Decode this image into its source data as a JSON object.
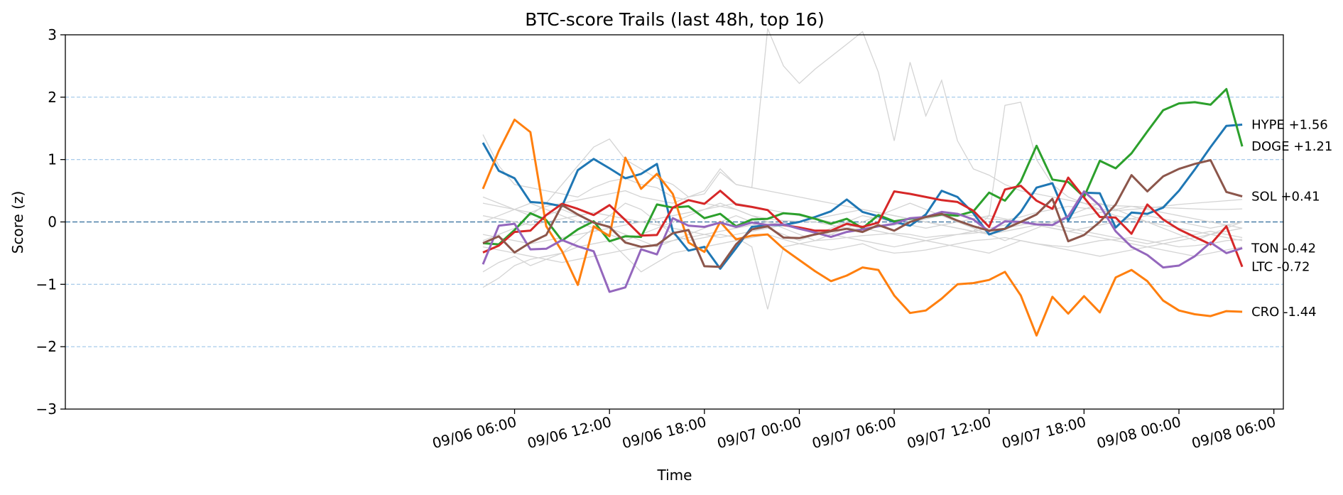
{
  "chart_data": {
    "type": "line",
    "title": "BTC-score Trails (last 48h, top 16)",
    "xlabel": "Time",
    "ylabel": "Score (z)",
    "ylim": [
      -3,
      3
    ],
    "yticks": [
      -3,
      -2,
      -1,
      0,
      1,
      2,
      3
    ],
    "ytick_labels": [
      "−3",
      "−2",
      "−1",
      "0",
      "1",
      "2",
      "3"
    ],
    "xlim": [
      "2025-09-05T01:36",
      "2025-09-08T06:36"
    ],
    "xticks": [
      "09/06 06:00",
      "09/06 12:00",
      "09/06 18:00",
      "09/07 00:00",
      "09/07 06:00",
      "09/07 12:00",
      "09/07 18:00",
      "09/08 00:00",
      "09/08 06:00"
    ],
    "reference_lines": {
      "solid_dashed": [
        0
      ],
      "dotted": [
        -2,
        -1,
        1,
        2
      ]
    },
    "x": [
      "09/06 04:00",
      "09/06 05:00",
      "09/06 06:00",
      "09/06 07:00",
      "09/06 08:00",
      "09/06 09:00",
      "09/06 10:00",
      "09/06 11:00",
      "09/06 12:00",
      "09/06 13:00",
      "09/06 14:00",
      "09/06 15:00",
      "09/06 16:00",
      "09/06 17:00",
      "09/06 18:00",
      "09/06 19:00",
      "09/06 20:00",
      "09/06 21:00",
      "09/06 22:00",
      "09/06 23:00",
      "09/07 00:00",
      "09/07 01:00",
      "09/07 02:00",
      "09/07 03:00",
      "09/07 04:00",
      "09/07 05:00",
      "09/07 06:00",
      "09/07 07:00",
      "09/07 08:00",
      "09/07 09:00",
      "09/07 10:00",
      "09/07 11:00",
      "09/07 12:00",
      "09/07 13:00",
      "09/07 14:00",
      "09/07 15:00",
      "09/07 16:00",
      "09/07 17:00",
      "09/07 18:00",
      "09/07 19:00",
      "09/07 20:00",
      "09/07 21:00",
      "09/07 22:00",
      "09/07 23:00",
      "09/08 00:00",
      "09/08 01:00",
      "09/08 02:00",
      "09/08 03:00",
      "09/08 04:00"
    ],
    "series": [
      {
        "name": "HYPE",
        "label": "HYPE  +1.56",
        "color": "#1f77b4",
        "values": [
          1.27,
          0.82,
          0.7,
          0.32,
          0.3,
          0.25,
          0.83,
          1.01,
          0.86,
          0.7,
          0.77,
          0.93,
          -0.15,
          -0.46,
          -0.4,
          -0.75,
          -0.42,
          -0.08,
          -0.05,
          -0.05,
          0.0,
          0.08,
          0.17,
          0.36,
          0.16,
          0.09,
          0.0,
          -0.06,
          0.12,
          0.5,
          0.4,
          0.14,
          -0.2,
          -0.11,
          0.16,
          0.55,
          0.62,
          0.02,
          0.47,
          0.46,
          -0.09,
          0.15,
          0.13,
          0.23,
          0.5,
          0.84,
          1.2,
          1.54,
          1.56
        ]
      },
      {
        "name": "DOGE",
        "label": "DOGE  +1.21",
        "color": "#2ca02c",
        "values": [
          -0.34,
          -0.36,
          -0.13,
          0.14,
          0.03,
          -0.3,
          -0.12,
          0.01,
          -0.31,
          -0.23,
          -0.24,
          0.28,
          0.23,
          0.25,
          0.06,
          0.13,
          -0.07,
          0.04,
          0.05,
          0.14,
          0.12,
          0.05,
          -0.03,
          0.05,
          -0.1,
          0.11,
          0.01,
          0.05,
          0.08,
          0.12,
          0.1,
          0.17,
          0.47,
          0.34,
          0.65,
          1.22,
          0.68,
          0.64,
          0.4,
          0.98,
          0.86,
          1.1,
          1.45,
          1.79,
          1.9,
          1.92,
          1.88,
          2.13,
          1.21
        ]
      },
      {
        "name": "CRO",
        "label": "CRO  -1.44",
        "color": "#ff7f0e",
        "values": [
          0.53,
          1.14,
          1.64,
          1.44,
          -0.07,
          -0.47,
          -1.01,
          -0.07,
          -0.23,
          1.03,
          0.53,
          0.77,
          0.45,
          -0.33,
          -0.48,
          0.0,
          -0.28,
          -0.22,
          -0.2,
          -0.43,
          -0.61,
          -0.79,
          -0.95,
          -0.86,
          -0.73,
          -0.77,
          -1.18,
          -1.46,
          -1.42,
          -1.23,
          -1.0,
          -0.98,
          -0.93,
          -0.8,
          -1.18,
          -1.82,
          -1.2,
          -1.47,
          -1.19,
          -1.45,
          -0.89,
          -0.77,
          -0.95,
          -1.26,
          -1.42,
          -1.48,
          -1.51,
          -1.43,
          -1.44
        ]
      },
      {
        "name": "LTC",
        "label": "LTC  -0.72",
        "color": "#d62728",
        "values": [
          -0.49,
          -0.38,
          -0.16,
          -0.14,
          0.11,
          0.29,
          0.21,
          0.11,
          0.27,
          0.03,
          -0.22,
          -0.21,
          0.23,
          0.35,
          0.29,
          0.5,
          0.28,
          0.24,
          0.19,
          -0.05,
          -0.09,
          -0.14,
          -0.14,
          -0.03,
          -0.08,
          -0.01,
          0.49,
          0.45,
          0.4,
          0.35,
          0.32,
          0.18,
          -0.08,
          0.52,
          0.58,
          0.34,
          0.21,
          0.71,
          0.39,
          0.08,
          0.07,
          -0.19,
          0.28,
          0.04,
          -0.12,
          -0.24,
          -0.36,
          -0.07,
          -0.72
        ]
      },
      {
        "name": "TON",
        "label": "TON  -0.42",
        "color": "#9467bd",
        "values": [
          -0.68,
          -0.06,
          -0.03,
          -0.44,
          -0.43,
          -0.29,
          -0.39,
          -0.47,
          -1.12,
          -1.05,
          -0.44,
          -0.52,
          0.06,
          -0.06,
          -0.08,
          -0.01,
          -0.08,
          -0.01,
          -0.05,
          -0.04,
          -0.11,
          -0.17,
          -0.24,
          -0.16,
          -0.12,
          -0.07,
          -0.03,
          0.06,
          0.08,
          0.16,
          0.13,
          0.04,
          -0.15,
          0.01,
          0.0,
          -0.04,
          -0.05,
          0.09,
          0.49,
          0.26,
          -0.15,
          -0.4,
          -0.53,
          -0.73,
          -0.7,
          -0.55,
          -0.33,
          -0.5,
          -0.42
        ]
      },
      {
        "name": "SOL",
        "label": "SOL  +0.41",
        "color": "#8c564b",
        "values": [
          -0.34,
          -0.23,
          -0.49,
          -0.33,
          -0.21,
          0.27,
          0.12,
          -0.01,
          -0.08,
          -0.33,
          -0.4,
          -0.37,
          -0.18,
          -0.13,
          -0.71,
          -0.72,
          -0.36,
          -0.12,
          -0.07,
          -0.25,
          -0.26,
          -0.2,
          -0.15,
          -0.11,
          -0.16,
          -0.05,
          -0.14,
          0.0,
          0.08,
          0.13,
          0.02,
          -0.07,
          -0.14,
          -0.11,
          0.0,
          0.12,
          0.37,
          -0.31,
          -0.21,
          0.0,
          0.28,
          0.75,
          0.49,
          0.73,
          0.85,
          0.93,
          0.99,
          0.48,
          0.41
        ]
      }
    ],
    "background_series": [
      {
        "values": [
          1.4,
          0.9,
          0.6,
          0.55,
          0.5,
          0.45,
          0.4,
          0.55,
          0.65,
          0.7,
          0.6,
          0.55,
          0.4,
          0.35,
          0.3,
          0.25,
          0.2,
          0.1,
          0.05,
          0.02,
          0.01,
          0.0,
          -0.05,
          -0.1,
          -0.12,
          -0.08,
          -0.05,
          0.0,
          0.05,
          0.1,
          0.12,
          0.1,
          0.05,
          0.03,
          0.08,
          0.15,
          0.2,
          0.25,
          0.22,
          0.2,
          0.18,
          0.2,
          0.22,
          0.25,
          0.28,
          0.3,
          0.32,
          0.34,
          0.36
        ]
      },
      {
        "values": [
          -0.8,
          -0.65,
          -0.55,
          -0.7,
          -0.6,
          -0.5,
          -0.3,
          -0.1,
          0.1,
          0.3,
          0.2,
          0.0,
          -0.2,
          -0.3,
          -0.25,
          -0.2,
          -0.25,
          -0.4,
          -1.4,
          -0.4,
          -0.35,
          -0.3,
          -0.28,
          -0.25,
          -0.22,
          -0.2,
          -0.18,
          -0.2,
          -0.25,
          -0.22,
          -0.2,
          -0.18,
          -0.15,
          -0.1,
          -0.05,
          0.0,
          -0.05,
          -0.1,
          -0.15,
          -0.2,
          -0.25,
          -0.3,
          -0.35,
          -0.3,
          -0.25,
          -0.2,
          -0.15,
          -0.2,
          -0.25
        ]
      },
      {
        "values": [
          0.3,
          0.25,
          0.2,
          0.15,
          0.25,
          0.3,
          0.35,
          0.4,
          0.45,
          0.5,
          0.4,
          0.35,
          0.3,
          0.4,
          0.45,
          0.8,
          0.6,
          0.55,
          3.1,
          2.5,
          2.22,
          2.45,
          2.65,
          2.85,
          3.05,
          2.4,
          1.3,
          2.56,
          1.7,
          2.27,
          1.3,
          0.85,
          0.75,
          0.6,
          0.5,
          0.45,
          0.4,
          0.35,
          0.3,
          0.28,
          0.26,
          0.25,
          0.24,
          0.23,
          0.22,
          0.21,
          0.2,
          0.2,
          0.21
        ]
      },
      {
        "values": [
          -1.05,
          -0.9,
          -0.7,
          -0.6,
          -0.55,
          -0.5,
          -0.4,
          -0.35,
          -0.3,
          -0.55,
          -0.8,
          -0.65,
          -0.5,
          -0.45,
          -0.4,
          -0.35,
          -0.3,
          -0.25,
          -0.2,
          -0.28,
          -0.35,
          -0.4,
          -0.45,
          -0.4,
          -0.35,
          -0.45,
          -0.5,
          -0.48,
          -0.45,
          -0.4,
          -0.35,
          -0.3,
          -0.28,
          -0.25,
          -0.3,
          -0.35,
          -0.38,
          -0.4,
          -0.35,
          -0.3,
          -0.28,
          -0.25,
          -0.3,
          -0.35,
          -0.4,
          -0.38,
          -0.35,
          -0.3,
          -0.28
        ]
      },
      {
        "values": [
          0.4,
          0.3,
          0.2,
          0.1,
          0.3,
          0.6,
          0.9,
          1.2,
          1.33,
          1.0,
          0.85,
          0.7,
          0.6,
          0.4,
          0.5,
          0.85,
          0.6,
          0.55,
          0.5,
          0.45,
          0.4,
          0.35,
          0.3,
          0.25,
          0.2,
          0.15,
          0.1,
          0.05,
          0.0,
          -0.05,
          -0.1,
          -0.15,
          0.1,
          1.87,
          1.92,
          1.0,
          0.6,
          0.4,
          0.3,
          0.2,
          0.1,
          0.05,
          0.0,
          -0.05,
          -0.1,
          -0.15,
          -0.2,
          -0.25,
          -0.3
        ]
      },
      {
        "values": [
          -0.2,
          -0.25,
          -0.3,
          -0.35,
          -0.3,
          -0.25,
          -0.2,
          -0.15,
          -0.1,
          -0.05,
          0.0,
          0.05,
          0.1,
          0.15,
          0.2,
          0.25,
          0.3,
          0.25,
          0.2,
          0.15,
          0.1,
          0.05,
          0.0,
          -0.05,
          -0.1,
          -0.15,
          -0.2,
          -0.25,
          -0.3,
          -0.35,
          -0.4,
          -0.45,
          -0.5,
          -0.4,
          -0.3,
          -0.35,
          -0.4,
          -0.45,
          -0.5,
          -0.55,
          -0.5,
          -0.45,
          -0.4,
          -0.35,
          -0.3,
          -0.25,
          -0.2,
          -0.15,
          -0.1
        ]
      },
      {
        "values": [
          0.1,
          0.05,
          0.0,
          -0.05,
          0.0,
          0.05,
          0.1,
          0.15,
          0.1,
          0.05,
          0.0,
          -0.05,
          -0.1,
          -0.15,
          -0.2,
          -0.25,
          -0.2,
          -0.15,
          -0.1,
          -0.05,
          0.0,
          0.05,
          0.1,
          0.15,
          0.2,
          0.15,
          0.1,
          0.05,
          0.0,
          -0.05,
          -0.1,
          -0.15,
          -0.2,
          -0.15,
          -0.1,
          -0.05,
          0.0,
          0.05,
          0.1,
          0.15,
          0.2,
          0.25,
          0.2,
          0.15,
          0.1,
          0.05,
          0.0,
          -0.05,
          -0.1
        ]
      },
      {
        "values": [
          -0.4,
          -0.45,
          -0.5,
          -0.55,
          -0.6,
          -0.65,
          -0.6,
          -0.55,
          -0.5,
          -0.45,
          -0.4,
          -0.35,
          -0.3,
          -0.25,
          -0.2,
          -0.15,
          -0.1,
          -0.05,
          0.0,
          -0.05,
          -0.1,
          -0.15,
          -0.2,
          -0.25,
          -0.3,
          -0.35,
          -0.4,
          -0.35,
          -0.3,
          -0.25,
          -0.2,
          -0.15,
          -0.1,
          -0.05,
          0.0,
          -0.05,
          -0.1,
          -0.15,
          -0.2,
          -0.25,
          -0.3,
          -0.35,
          -0.4,
          -0.45,
          -0.5,
          -0.55,
          -0.5,
          -0.45,
          -0.4
        ]
      },
      {
        "values": [
          0.0,
          0.1,
          0.2,
          0.3,
          0.2,
          0.1,
          0.0,
          -0.1,
          -0.2,
          -0.3,
          -0.2,
          -0.1,
          0.0,
          0.1,
          0.2,
          0.3,
          0.2,
          0.1,
          0.0,
          -0.1,
          -0.2,
          -0.3,
          -0.2,
          -0.1,
          0.0,
          0.1,
          0.2,
          0.3,
          0.2,
          0.1,
          0.0,
          -0.1,
          -0.2,
          -0.3,
          -0.2,
          -0.1,
          0.0,
          0.1,
          0.2,
          0.3,
          0.2,
          0.1,
          0.0,
          -0.1,
          -0.2,
          -0.3,
          -0.2,
          -0.1,
          0.0
        ]
      },
      {
        "values": [
          -0.3,
          -0.2,
          -0.1,
          0.0,
          0.1,
          0.2,
          0.1,
          0.0,
          -0.1,
          -0.2,
          -0.3,
          -0.4,
          -0.3,
          -0.2,
          -0.1,
          0.0,
          0.1,
          0.0,
          -0.1,
          -0.2,
          -0.3,
          -0.2,
          -0.1,
          0.0,
          0.1,
          0.05,
          0.0,
          -0.05,
          -0.1,
          -0.05,
          0.0,
          0.05,
          0.1,
          0.05,
          0.0,
          -0.05,
          -0.1,
          -0.15,
          -0.1,
          -0.05,
          0.0,
          0.05,
          0.1,
          0.05,
          0.0,
          -0.05,
          -0.1,
          -0.05,
          0.0
        ]
      }
    ]
  }
}
